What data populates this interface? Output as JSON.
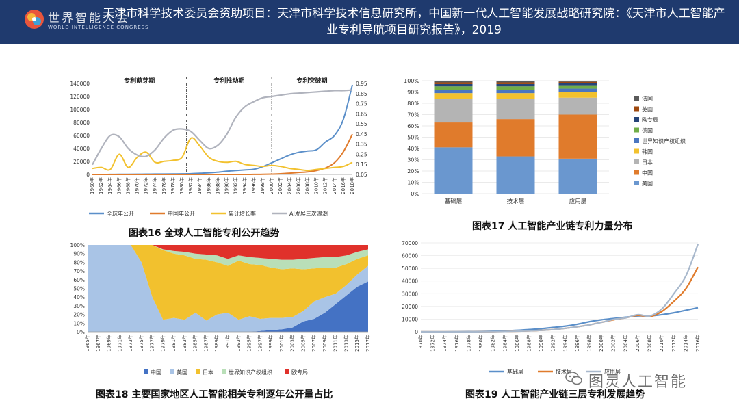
{
  "header": {
    "logo_text": "世界智能大会",
    "logo_sub": "WORLD INTELLIGENCE CONGRESS",
    "title": "天津市科学技术委员会资助项目：天津市科学技术信息研究所，中国新一代人工智能发展战略研究院：《天津市人工智能产业专利导航项目研究报告》，2019"
  },
  "watermark": "图灵人工智能",
  "colors": {
    "header_bg": "#1f3a6e",
    "blue": "#5b8fc9",
    "orange": "#e07b2c",
    "yellow": "#f2c12e",
    "gray_curve": "#b0b3bd",
    "pale_blue": "#a9c4e6",
    "red": "#e0312b",
    "green_light": "#b9dfb8"
  },
  "chart_data": [
    {
      "id": "fig16",
      "type": "line",
      "caption": "图表16 全球人工智能专利公开趋势",
      "periods": [
        "专利萌芽期",
        "专利推动期",
        "专利突破期"
      ],
      "period_bounds": [
        1960,
        1981,
        2000,
        2018
      ],
      "x": [
        1960,
        1962,
        1964,
        1966,
        1968,
        1970,
        1972,
        1974,
        1976,
        1978,
        1980,
        1982,
        1984,
        1986,
        1988,
        1990,
        1992,
        1994,
        1996,
        1998,
        2000,
        2002,
        2004,
        2006,
        2008,
        2010,
        2012,
        2014,
        2016,
        2018
      ],
      "x_tick_labels": [
        "1960年",
        "1962年",
        "1964年",
        "1966年",
        "1968年",
        "1970年",
        "1972年",
        "1974年",
        "1976年",
        "1978年",
        "1980年",
        "1982年",
        "1984年",
        "1986年",
        "1988年",
        "1990年",
        "1992年",
        "1994年",
        "1996年",
        "1998年",
        "2000年",
        "2002年",
        "2004年",
        "2006年",
        "2008年",
        "2010年",
        "2012年",
        "2014年",
        "2016年",
        "2018年"
      ],
      "ylim_left": [
        0,
        140000
      ],
      "y_ticks_left": [
        "0",
        "20000",
        "40000",
        "60000",
        "80000",
        "100000",
        "120000",
        "140000"
      ],
      "ylim_right": [
        0.05,
        0.95
      ],
      "y_ticks_right": [
        "0.05",
        "0.15",
        "0.25",
        "0.35",
        "0.45",
        "0.55",
        "0.65",
        "0.75",
        "0.85",
        "0.95"
      ],
      "series": [
        {
          "name": "全球年公开",
          "axis": "left",
          "color": "#5b8fc9",
          "values": [
            0,
            0,
            100,
            200,
            300,
            400,
            500,
            600,
            700,
            800,
            900,
            1200,
            1800,
            2500,
            3500,
            5000,
            6000,
            7000,
            8000,
            12000,
            18000,
            24000,
            30000,
            34000,
            36000,
            38000,
            50000,
            60000,
            85000,
            138000
          ]
        },
        {
          "name": "中国年公开",
          "axis": "left",
          "color": "#e07b2c",
          "values": [
            0,
            0,
            0,
            0,
            0,
            0,
            0,
            0,
            0,
            0,
            0,
            0,
            0,
            0,
            0,
            0,
            0,
            0,
            100,
            200,
            500,
            1000,
            2000,
            3000,
            4000,
            6000,
            10000,
            18000,
            35000,
            62000
          ]
        },
        {
          "name": "累计增长率",
          "axis": "right",
          "color": "#f2c12e",
          "values": [
            0.11,
            0.12,
            0.1,
            0.25,
            0.12,
            0.22,
            0.27,
            0.17,
            0.18,
            0.19,
            0.22,
            0.41,
            0.33,
            0.22,
            0.18,
            0.17,
            0.18,
            0.15,
            0.14,
            0.13,
            0.14,
            0.13,
            0.11,
            0.1,
            0.09,
            0.1,
            0.11,
            0.12,
            0.13,
            0.17
          ]
        },
        {
          "name": "AI发展三次浪潮",
          "axis": "left",
          "color": "#b0b3bd",
          "values": [
            15000,
            40000,
            60000,
            58000,
            40000,
            30000,
            28000,
            38000,
            56000,
            68000,
            70000,
            66000,
            52000,
            40000,
            45000,
            62000,
            88000,
            104000,
            112000,
            118000,
            120000,
            122000,
            124000,
            125000,
            126000,
            127000,
            128000,
            129000,
            129000,
            130000
          ]
        }
      ]
    },
    {
      "id": "fig17",
      "type": "bar",
      "stacked": true,
      "caption": "图表17 人工智能产业链专利力量分布",
      "categories": [
        "基础层",
        "技术层",
        "应用层"
      ],
      "ylim": [
        0,
        1
      ],
      "y_ticks": [
        "0%",
        "10%",
        "20%",
        "30%",
        "40%",
        "50%",
        "60%",
        "70%",
        "80%",
        "90%",
        "100%"
      ],
      "series": [
        {
          "name": "美国",
          "color": "#6a97cf",
          "values": [
            0.41,
            0.33,
            0.31
          ]
        },
        {
          "name": "中国",
          "color": "#e07b2c",
          "values": [
            0.22,
            0.33,
            0.39
          ]
        },
        {
          "name": "日本",
          "color": "#b4b4b4",
          "values": [
            0.21,
            0.18,
            0.15
          ]
        },
        {
          "name": "韩国",
          "color": "#f2c12e",
          "values": [
            0.05,
            0.05,
            0.05
          ]
        },
        {
          "name": "世界知识产权组织",
          "color": "#4a76c0",
          "values": [
            0.03,
            0.03,
            0.03
          ]
        },
        {
          "name": "德国",
          "color": "#70ad47",
          "values": [
            0.03,
            0.03,
            0.03
          ]
        },
        {
          "name": "欧专局",
          "color": "#264478",
          "values": [
            0.02,
            0.02,
            0.02
          ]
        },
        {
          "name": "英国",
          "color": "#9e480e",
          "values": [
            0.015,
            0.015,
            0.01
          ]
        },
        {
          "name": "法国",
          "color": "#5a5a5a",
          "values": [
            0.015,
            0.015,
            0.01
          ]
        }
      ]
    },
    {
      "id": "fig18",
      "type": "area",
      "stacked": true,
      "caption": "图表18 主要国家地区人工智能相关专利逐年公开量占比",
      "x_tick_labels": [
        "1965年",
        "1967年",
        "1969年",
        "1971年",
        "1973年",
        "1975年",
        "1977年",
        "1979年",
        "1981年",
        "1983年",
        "1985年",
        "1987年",
        "1989年",
        "1991年",
        "1993年",
        "1995年",
        "1997年",
        "1999年",
        "2001年",
        "2003年",
        "2005年",
        "2007年",
        "2009年",
        "2011年",
        "2013年",
        "2015年",
        "2017年"
      ],
      "ylim": [
        0,
        1
      ],
      "y_ticks": [
        "0%",
        "10%",
        "20%",
        "30%",
        "40%",
        "50%",
        "60%",
        "70%",
        "80%",
        "90%",
        "100%"
      ],
      "series": [
        {
          "name": "中国",
          "color": "#4472c4",
          "values": [
            0,
            0,
            0,
            0,
            0,
            0,
            0,
            0,
            0,
            0,
            0,
            0,
            0,
            0,
            0,
            0,
            0.01,
            0.02,
            0.03,
            0.05,
            0.12,
            0.15,
            0.22,
            0.32,
            0.42,
            0.52,
            0.58
          ]
        },
        {
          "name": "美国",
          "color": "#a9c4e6",
          "values": [
            1,
            1,
            1,
            1,
            1,
            0.8,
            0.4,
            0.14,
            0.16,
            0.14,
            0.22,
            0.13,
            0.2,
            0.22,
            0.14,
            0.18,
            0.14,
            0.14,
            0.13,
            0.12,
            0.12,
            0.2,
            0.18,
            0.12,
            0.12,
            0.14,
            0.18
          ]
        },
        {
          "name": "日本",
          "color": "#f2c12e",
          "values": [
            0,
            0,
            0,
            0,
            0,
            0.2,
            0.6,
            0.8,
            0.74,
            0.74,
            0.62,
            0.7,
            0.6,
            0.54,
            0.68,
            0.6,
            0.62,
            0.58,
            0.56,
            0.56,
            0.48,
            0.38,
            0.34,
            0.3,
            0.24,
            0.18,
            0.12
          ]
        },
        {
          "name": "世界知识产权组织",
          "color": "#b9dfb8",
          "values": [
            0,
            0,
            0,
            0,
            0,
            0,
            0,
            0.01,
            0.03,
            0.04,
            0.06,
            0.06,
            0.08,
            0.08,
            0.06,
            0.08,
            0.08,
            0.1,
            0.11,
            0.1,
            0.12,
            0.12,
            0.12,
            0.12,
            0.1,
            0.08,
            0.07
          ]
        },
        {
          "name": "欧专局",
          "color": "#e0312b",
          "values": [
            0,
            0,
            0,
            0,
            0,
            0,
            0,
            0.05,
            0.07,
            0.08,
            0.1,
            0.11,
            0.12,
            0.16,
            0.12,
            0.14,
            0.15,
            0.16,
            0.17,
            0.17,
            0.16,
            0.15,
            0.14,
            0.14,
            0.12,
            0.08,
            0.05
          ]
        }
      ]
    },
    {
      "id": "fig19",
      "type": "line",
      "caption": "图表19 人工智能产业链三层专利发展趋势",
      "x_tick_labels": [
        "1970年",
        "1972年",
        "1974年",
        "1976年",
        "1978年",
        "1980年",
        "1982年",
        "1984年",
        "1986年",
        "1988年",
        "1990年",
        "1992年",
        "1994年",
        "1996年",
        "1998年",
        "2000年",
        "2002年",
        "2004年",
        "2006年",
        "2008年",
        "2010年",
        "2012年",
        "2014年",
        "2016年"
      ],
      "ylim": [
        0,
        70000
      ],
      "y_ticks": [
        "0",
        "10000",
        "20000",
        "30000",
        "40000",
        "50000",
        "60000",
        "70000"
      ],
      "series": [
        {
          "name": "基础层",
          "color": "#5b8fc9",
          "values": [
            0,
            0,
            0,
            100,
            200,
            300,
            500,
            800,
            1200,
            1800,
            2500,
            3500,
            4500,
            6000,
            8000,
            9500,
            10500,
            11500,
            12500,
            12500,
            13500,
            15000,
            17000,
            19000
          ]
        },
        {
          "name": "技术层",
          "color": "#e07b2c",
          "values": [
            0,
            0,
            0,
            0,
            0,
            100,
            200,
            300,
            500,
            800,
            1200,
            1800,
            2800,
            4000,
            5500,
            7500,
            9500,
            11000,
            13000,
            12000,
            16000,
            24000,
            34000,
            51000
          ]
        },
        {
          "name": "应用层",
          "color": "#a8b8cc",
          "values": [
            0,
            0,
            0,
            0,
            0,
            100,
            200,
            300,
            500,
            800,
            1200,
            1800,
            2800,
            4000,
            5500,
            7500,
            9800,
            11000,
            13500,
            12500,
            18000,
            30000,
            44000,
            69000
          ]
        }
      ]
    }
  ]
}
